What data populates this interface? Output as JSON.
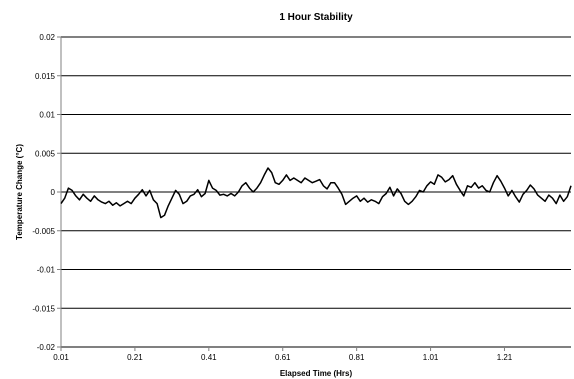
{
  "chart_data": {
    "type": "line",
    "title": "1 Hour Stability",
    "xlabel": "Elapsed Time (Hrs)",
    "ylabel": "Temperature Change (°C)",
    "xlim": [
      0.01,
      1.39
    ],
    "ylim": [
      -0.02,
      0.02
    ],
    "x_ticks": [
      {
        "value": 0.01,
        "label": "0.01"
      },
      {
        "value": 0.21,
        "label": "0.21"
      },
      {
        "value": 0.41,
        "label": "0.41"
      },
      {
        "value": 0.61,
        "label": "0.61"
      },
      {
        "value": 0.81,
        "label": "0.81"
      },
      {
        "value": 1.01,
        "label": "1.01"
      },
      {
        "value": 1.21,
        "label": "1.21"
      }
    ],
    "y_ticks": [
      {
        "value": 0.02,
        "label": "0.02"
      },
      {
        "value": 0.015,
        "label": "0.015"
      },
      {
        "value": 0.01,
        "label": "0.01"
      },
      {
        "value": 0.005,
        "label": "0.005"
      },
      {
        "value": 0,
        "label": "0"
      },
      {
        "value": -0.005,
        "label": "-0.005"
      },
      {
        "value": -0.01,
        "label": "-0.01"
      },
      {
        "value": -0.015,
        "label": "-0.015"
      },
      {
        "value": -0.02,
        "label": "-0.02"
      }
    ],
    "grid": "horizontal",
    "colors": {
      "line": "#000000",
      "grid": "#000000",
      "axis": "#808080"
    },
    "series": [
      {
        "x": [
          0.01,
          0.02,
          0.03,
          0.04,
          0.05,
          0.06,
          0.07,
          0.08,
          0.09,
          0.1,
          0.11,
          0.12,
          0.13,
          0.14,
          0.15,
          0.16,
          0.17,
          0.18,
          0.19,
          0.2,
          0.21,
          0.22,
          0.23,
          0.24,
          0.25,
          0.26,
          0.27,
          0.28,
          0.29,
          0.3,
          0.31,
          0.32,
          0.33,
          0.34,
          0.35,
          0.36,
          0.37,
          0.38,
          0.39,
          0.4,
          0.41,
          0.42,
          0.43,
          0.44,
          0.45,
          0.46,
          0.47,
          0.48,
          0.49,
          0.5,
          0.51,
          0.52,
          0.53,
          0.54,
          0.55,
          0.56,
          0.57,
          0.58,
          0.59,
          0.6,
          0.61,
          0.62,
          0.63,
          0.64,
          0.65,
          0.66,
          0.67,
          0.68,
          0.69,
          0.7,
          0.71,
          0.72,
          0.73,
          0.74,
          0.75,
          0.76,
          0.77,
          0.78,
          0.79,
          0.8,
          0.81,
          0.82,
          0.83,
          0.84,
          0.85,
          0.86,
          0.87,
          0.88,
          0.89,
          0.9,
          0.91,
          0.92,
          0.93,
          0.94,
          0.95,
          0.96,
          0.97,
          0.98,
          0.99,
          1.0,
          1.01,
          1.02,
          1.03,
          1.04,
          1.05,
          1.06,
          1.07,
          1.08,
          1.09,
          1.1,
          1.11,
          1.12,
          1.13,
          1.14,
          1.15,
          1.16,
          1.17,
          1.18,
          1.19,
          1.2,
          1.21,
          1.22,
          1.23,
          1.24,
          1.25,
          1.26,
          1.27,
          1.28,
          1.29,
          1.3,
          1.31,
          1.32,
          1.33,
          1.34,
          1.35,
          1.36,
          1.37,
          1.38,
          1.39
        ],
        "y": [
          -0.0015,
          -0.0008,
          0.0005,
          0.0002,
          -0.0005,
          -0.001,
          -0.0003,
          -0.0008,
          -0.0012,
          -0.0005,
          -0.001,
          -0.0013,
          -0.0015,
          -0.0012,
          -0.0017,
          -0.0014,
          -0.0018,
          -0.0015,
          -0.0012,
          -0.0015,
          -0.0008,
          -0.0003,
          0.0003,
          -0.0005,
          0.0002,
          -0.001,
          -0.0015,
          -0.0033,
          -0.003,
          -0.0018,
          -0.0008,
          0.0002,
          -0.0003,
          -0.0015,
          -0.0012,
          -0.0005,
          -0.0003,
          0.0003,
          -0.0006,
          -0.0002,
          0.0015,
          0.0005,
          0.0002,
          -0.0004,
          -0.0003,
          -0.0005,
          -0.0002,
          -0.0005,
          0.0,
          0.0008,
          0.0012,
          0.0005,
          0.0,
          0.0005,
          0.0012,
          0.0022,
          0.0031,
          0.0025,
          0.0012,
          0.001,
          0.0015,
          0.0022,
          0.0015,
          0.0018,
          0.0015,
          0.0012,
          0.0018,
          0.0015,
          0.0012,
          0.0014,
          0.0016,
          0.0008,
          0.0004,
          0.0012,
          0.0012,
          0.0005,
          -0.0003,
          -0.0016,
          -0.0012,
          -0.0008,
          -0.0005,
          -0.0012,
          -0.0008,
          -0.0013,
          -0.001,
          -0.0012,
          -0.0015,
          -0.0006,
          -0.0002,
          0.0006,
          -0.0005,
          0.0004,
          -0.0002,
          -0.0012,
          -0.0016,
          -0.0012,
          -0.0006,
          0.0002,
          0.0,
          0.0008,
          0.0013,
          0.001,
          0.0022,
          0.0019,
          0.0013,
          0.0016,
          0.0021,
          0.001,
          0.0002,
          -0.0005,
          0.0008,
          0.0006,
          0.0012,
          0.0005,
          0.0008,
          0.0002,
          0.0,
          0.0012,
          0.0021,
          0.0014,
          0.0005,
          -0.0005,
          0.0002,
          -0.0006,
          -0.0013,
          -0.0003,
          0.0002,
          0.0009,
          0.0004,
          -0.0004,
          -0.0008,
          -0.0012,
          -0.0004,
          -0.0008,
          -0.0015,
          -0.0004,
          -0.0012,
          -0.0006,
          0.0008
        ]
      }
    ]
  }
}
